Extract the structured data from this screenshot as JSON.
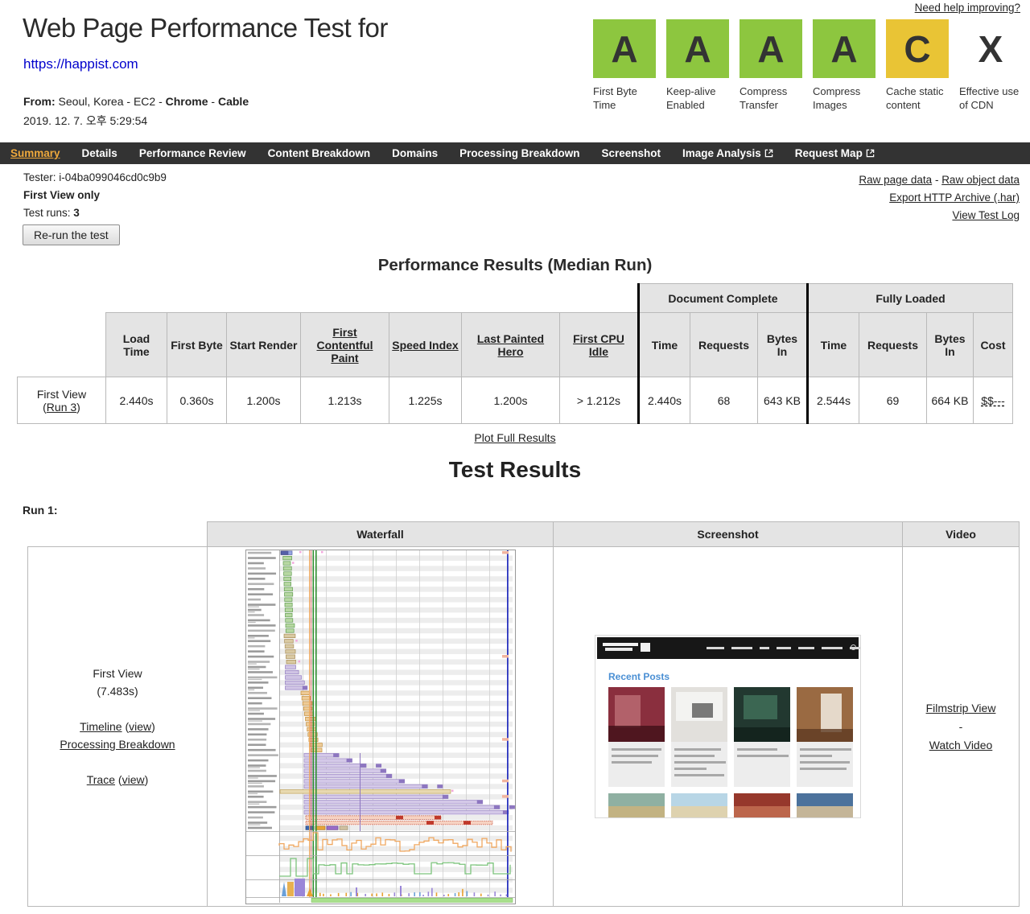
{
  "page": {
    "title": "Web Page Performance Test for",
    "url": "https://happist.com",
    "from_label": "From:",
    "from_location": " Seoul, Korea - EC2 - ",
    "browser": "Chrome",
    "sep": " - ",
    "connection": "Cable",
    "date": "2019. 12. 7. 오후 5:29:54",
    "help_link": "Need help improving?"
  },
  "grades": {
    "items": [
      {
        "letter": "A",
        "label": "First Byte Time"
      },
      {
        "letter": "A",
        "label": "Keep-alive Enabled"
      },
      {
        "letter": "A",
        "label": "Compress Transfer"
      },
      {
        "letter": "A",
        "label": "Compress Images"
      },
      {
        "letter": "C",
        "label": "Cache static content"
      },
      {
        "letter": "X",
        "label": "Effective use of CDN"
      }
    ],
    "colors": {
      "A": "#8DC63F",
      "C": "#E9C435",
      "X": "transparent"
    }
  },
  "nav": {
    "tabs": [
      {
        "label": "Summary"
      },
      {
        "label": "Details"
      },
      {
        "label": "Performance Review"
      },
      {
        "label": "Content Breakdown"
      },
      {
        "label": "Domains"
      },
      {
        "label": "Processing Breakdown"
      },
      {
        "label": "Screenshot"
      },
      {
        "label": "Image Analysis"
      },
      {
        "label": "Request Map"
      }
    ]
  },
  "info": {
    "tester": "Tester: i-04ba099046cd0c9b9",
    "first_view_only": "First View only",
    "test_runs_label": "Test runs: ",
    "test_runs_value": "3",
    "rerun": "Re-run the test",
    "raw_page": "Raw page data",
    "raw_sep": " - ",
    "raw_object": "Raw object data",
    "export_har": "Export HTTP Archive (.har)",
    "view_log": "View Test Log"
  },
  "punct": {
    "open": "(",
    "close": ")"
  },
  "perf_table": {
    "heading": "Performance Results (Median Run)",
    "groups": {
      "doc": "Document Complete",
      "full": "Fully Loaded"
    },
    "cols": [
      "Load Time",
      "First Byte",
      "Start Render",
      "First Contentful Paint",
      "Speed Index",
      "Last Painted Hero",
      "First CPU Idle",
      "Time",
      "Requests",
      "Bytes In",
      "Time",
      "Requests",
      "Bytes In",
      "Cost"
    ],
    "row_label": "First View",
    "run_link": "Run 3",
    "values": [
      "2.440s",
      "0.360s",
      "1.200s",
      "1.213s",
      "1.225s",
      "1.200s",
      "> 1.212s",
      "2.440s",
      "68",
      "643 KB",
      "2.544s",
      "69",
      "664 KB",
      "$$---"
    ],
    "plot_link": "Plot Full Results"
  },
  "test_results": {
    "heading": "Test Results",
    "run_label": "Run 1:",
    "col_waterfall": "Waterfall",
    "col_screenshot": "Screenshot",
    "col_video": "Video",
    "first_view_label": "First View",
    "first_view_time": "(7.483s)",
    "timeline": "Timeline",
    "timeline_view": "view",
    "processing": "Processing Breakdown",
    "trace": "Trace",
    "trace_view": "view",
    "filmstrip": "Filmstrip View",
    "dash": "-",
    "watch": "Watch Video"
  },
  "screenshot_thumb": {
    "recent_posts": "Recent Posts"
  }
}
